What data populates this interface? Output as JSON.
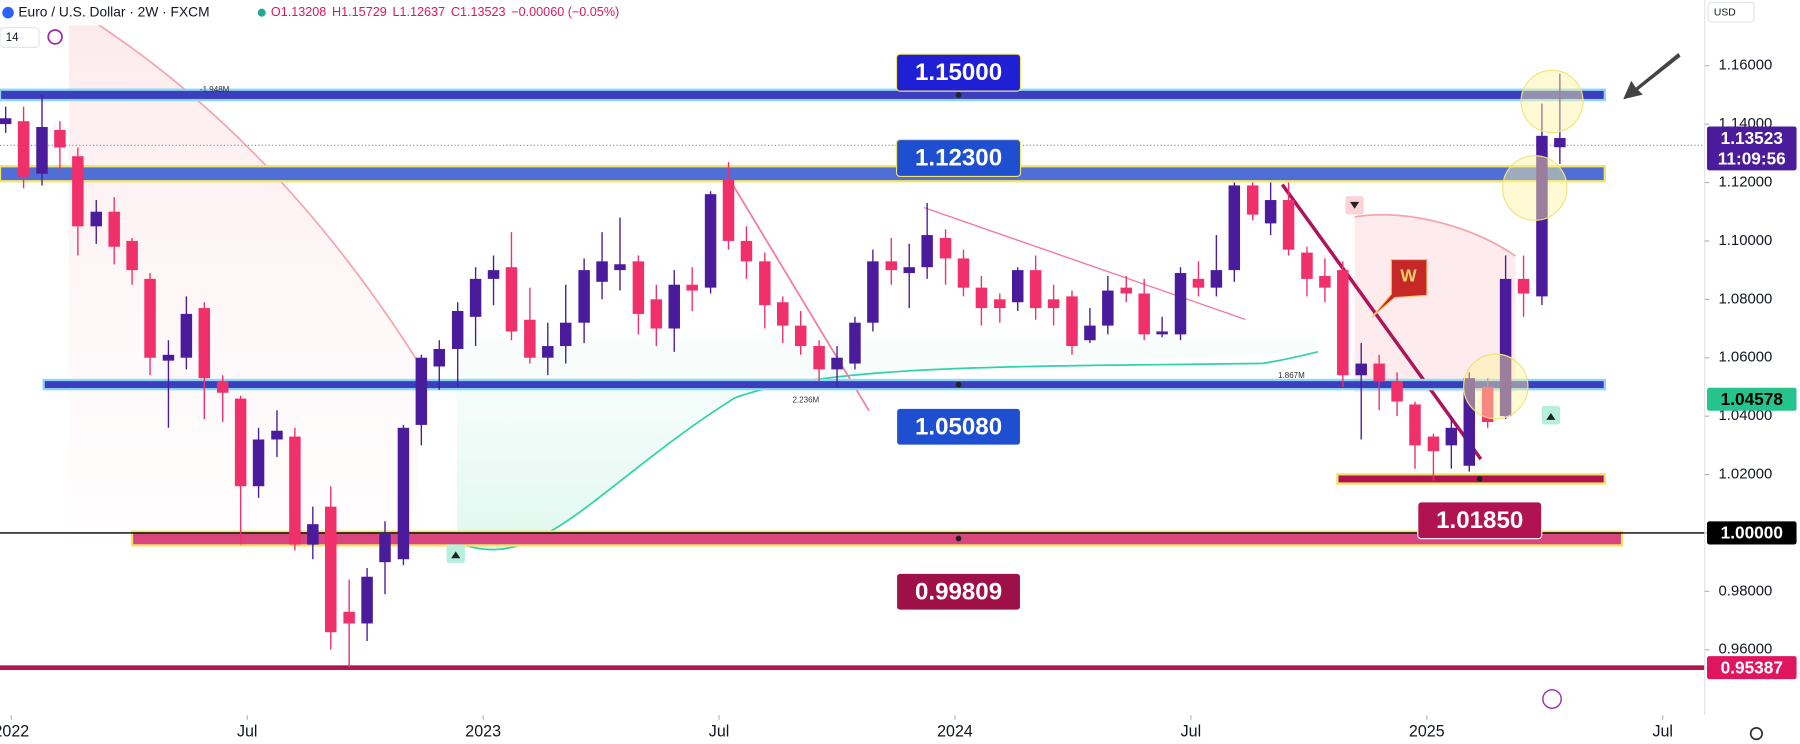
{
  "header": {
    "title": "Euro / U.S. Dollar · 2W · FXCM",
    "quote": [
      "O1.13208",
      "H1.15729",
      "L1.12637",
      "C1.13523",
      "−0.00060 (−0.05%)"
    ],
    "indicator": "14",
    "currency": "USD"
  },
  "chart_data": {
    "type": "candlestick",
    "up_color": "#4a1c9c",
    "down_color": "#f0306a",
    "x": [
      2021.988,
      2022.026,
      2022.065,
      2022.103,
      2022.141,
      2022.18,
      2022.218,
      2022.256,
      2022.294,
      2022.333,
      2022.371,
      2022.409,
      2022.448,
      2022.486,
      2022.524,
      2022.563,
      2022.601,
      2022.639,
      2022.677,
      2022.716,
      2022.754,
      2022.792,
      2022.831,
      2022.869,
      2022.907,
      2022.946,
      2022.984,
      2023.022,
      2023.06,
      2023.099,
      2023.137,
      2023.175,
      2023.214,
      2023.252,
      2023.29,
      2023.329,
      2023.367,
      2023.405,
      2023.443,
      2023.482,
      2023.52,
      2023.558,
      2023.597,
      2023.635,
      2023.673,
      2023.712,
      2023.75,
      2023.788,
      2023.826,
      2023.865,
      2023.903,
      2023.941,
      2023.98,
      2024.018,
      2024.056,
      2024.095,
      2024.133,
      2024.171,
      2024.209,
      2024.248,
      2024.286,
      2024.324,
      2024.363,
      2024.401,
      2024.439,
      2024.478,
      2024.516,
      2024.554,
      2024.592,
      2024.631,
      2024.669,
      2024.707,
      2024.746,
      2024.784,
      2024.822,
      2024.861,
      2024.899,
      2024.937,
      2024.975,
      2025.014,
      2025.052,
      2025.09,
      2025.129,
      2025.167,
      2025.205,
      2025.244,
      2025.282
    ],
    "open": [
      1.14,
      1.141,
      1.123,
      1.138,
      1.129,
      1.105,
      1.11,
      1.1,
      1.087,
      1.059,
      1.06,
      1.077,
      1.052,
      1.046,
      1.016,
      1.032,
      1.033,
      0.996,
      1.009,
      0.973,
      0.969,
      0.99,
      0.991,
      1.037,
      1.057,
      1.063,
      1.074,
      1.087,
      1.091,
      1.073,
      1.06,
      1.064,
      1.072,
      1.086,
      1.09,
      1.093,
      1.08,
      1.07,
      1.085,
      1.084,
      1.121,
      1.1,
      1.093,
      1.079,
      1.071,
      1.064,
      1.056,
      1.058,
      1.072,
      1.093,
      1.089,
      1.091,
      1.101,
      1.094,
      1.084,
      1.08,
      1.079,
      1.09,
      1.08,
      1.081,
      1.066,
      1.071,
      1.084,
      1.082,
      1.068,
      1.068,
      1.087,
      1.084,
      1.09,
      1.119,
      1.106,
      1.114,
      1.096,
      1.088,
      1.09,
      1.054,
      1.058,
      1.052,
      1.044,
      1.033,
      1.03,
      1.023,
      1.05,
      1.04,
      1.087,
      1.081,
      1.13208
    ],
    "high": [
      1.146,
      1.146,
      1.15,
      1.141,
      1.132,
      1.114,
      1.115,
      1.101,
      1.089,
      1.066,
      1.081,
      1.079,
      1.054,
      1.047,
      1.036,
      1.042,
      1.036,
      1.009,
      1.016,
      0.984,
      0.988,
      1.004,
      1.037,
      1.061,
      1.066,
      1.079,
      1.091,
      1.095,
      1.103,
      1.084,
      1.072,
      1.085,
      1.094,
      1.103,
      1.108,
      1.095,
      1.085,
      1.09,
      1.091,
      1.117,
      1.127,
      1.105,
      1.096,
      1.081,
      1.076,
      1.066,
      1.064,
      1.074,
      1.097,
      1.101,
      1.099,
      1.113,
      1.104,
      1.097,
      1.088,
      1.082,
      1.091,
      1.095,
      1.085,
      1.083,
      1.077,
      1.088,
      1.088,
      1.087,
      1.074,
      1.091,
      1.093,
      1.102,
      1.12,
      1.12,
      1.12,
      1.12,
      1.098,
      1.094,
      1.093,
      1.065,
      1.061,
      1.055,
      1.045,
      1.034,
      1.04,
      1.055,
      1.053,
      1.095,
      1.095,
      1.147,
      1.15729
    ],
    "low": [
      1.137,
      1.118,
      1.119,
      1.124,
      1.095,
      1.099,
      1.092,
      1.085,
      1.054,
      1.036,
      1.056,
      1.039,
      1.038,
      0.996,
      1.012,
      1.026,
      0.994,
      0.991,
      0.96,
      0.954,
      0.963,
      0.979,
      0.989,
      1.03,
      1.049,
      1.05,
      1.064,
      1.078,
      1.066,
      1.058,
      1.054,
      1.058,
      1.065,
      1.08,
      1.083,
      1.068,
      1.064,
      1.062,
      1.076,
      1.082,
      1.097,
      1.087,
      1.07,
      1.065,
      1.061,
      1.052,
      1.05,
      1.056,
      1.069,
      1.085,
      1.077,
      1.087,
      1.085,
      1.081,
      1.071,
      1.072,
      1.076,
      1.073,
      1.071,
      1.061,
      1.065,
      1.068,
      1.079,
      1.066,
      1.067,
      1.066,
      1.081,
      1.081,
      1.086,
      1.107,
      1.102,
      1.095,
      1.081,
      1.079,
      1.05,
      1.032,
      1.042,
      1.04,
      1.022,
      1.018,
      1.022,
      1.021,
      1.036,
      1.039,
      1.074,
      1.078,
      1.12637
    ],
    "close": [
      1.142,
      1.122,
      1.139,
      1.132,
      1.105,
      1.11,
      1.098,
      1.09,
      1.06,
      1.061,
      1.075,
      1.053,
      1.048,
      1.016,
      1.032,
      1.035,
      0.996,
      1.003,
      0.966,
      0.969,
      0.985,
      1.0,
      1.036,
      1.06,
      1.063,
      1.076,
      1.087,
      1.09,
      1.069,
      1.06,
      1.064,
      1.072,
      1.09,
      1.093,
      1.092,
      1.075,
      1.07,
      1.085,
      1.083,
      1.116,
      1.1,
      1.093,
      1.078,
      1.071,
      1.064,
      1.056,
      1.06,
      1.072,
      1.093,
      1.09,
      1.091,
      1.102,
      1.094,
      1.084,
      1.077,
      1.077,
      1.09,
      1.077,
      1.077,
      1.064,
      1.071,
      1.083,
      1.082,
      1.068,
      1.069,
      1.089,
      1.084,
      1.09,
      1.119,
      1.109,
      1.114,
      1.097,
      1.087,
      1.084,
      1.054,
      1.058,
      1.052,
      1.045,
      1.03,
      1.028,
      1.036,
      1.053,
      1.038,
      1.087,
      1.082,
      1.136,
      1.13523
    ],
    "xlim": [
      2021.976,
      2025.589
    ],
    "xticks": [
      {
        "value": 2022,
        "label": "2022"
      },
      {
        "value": 2022.5,
        "label": "Jul"
      },
      {
        "value": 2023,
        "label": "2023"
      },
      {
        "value": 2023.5,
        "label": "Jul"
      },
      {
        "value": 2024,
        "label": "2024"
      },
      {
        "value": 2024.5,
        "label": "Jul"
      },
      {
        "value": 2025,
        "label": "2025"
      },
      {
        "value": 2025.5,
        "label": "Jul"
      }
    ],
    "ylim": [
      0.9376,
      1.1825
    ],
    "yticks": [
      {
        "value": 0.96,
        "label": "0.96000"
      },
      {
        "value": 0.98,
        "label": "0.98000"
      },
      {
        "value": 1.0,
        "label": "1.00000"
      },
      {
        "value": 1.02,
        "label": "1.02000"
      },
      {
        "value": 1.04,
        "label": "1.04000"
      },
      {
        "value": 1.06,
        "label": "1.06000"
      },
      {
        "value": 1.08,
        "label": "1.08000"
      },
      {
        "value": 1.1,
        "label": "1.10000"
      },
      {
        "value": 1.12,
        "label": "1.12000"
      },
      {
        "value": 1.14,
        "label": "1.14000"
      },
      {
        "value": 1.16,
        "label": "1.16000"
      }
    ],
    "levels": [
      {
        "value": 1.15,
        "label": "1.15000",
        "color": "#1f1fd6"
      },
      {
        "value": 1.123,
        "label": "1.12300",
        "color": "#1e4fd0"
      },
      {
        "value": 1.0508,
        "label": "1.05080",
        "color": "#1e4fd0"
      },
      {
        "value": 1.0185,
        "label": "1.01850",
        "color": "#b0134f"
      },
      {
        "value": 0.99809,
        "label": "0.99809",
        "color": "#a01048"
      }
    ],
    "price_tags": [
      {
        "value": 1.13523,
        "label": "1.13523",
        "color": "#4a1c9c"
      },
      {
        "value": 1.04578,
        "label": "1.04578",
        "color": "#26c48c"
      },
      {
        "value": 1.0,
        "label": "1.00000",
        "color": "#000000"
      },
      {
        "value": 0.95387,
        "label": "0.95387",
        "color": "#e0155f"
      }
    ],
    "countdown": "11:09:56",
    "annotations": [
      "-1.948M",
      "2.236M",
      "1.867M",
      "W"
    ]
  }
}
